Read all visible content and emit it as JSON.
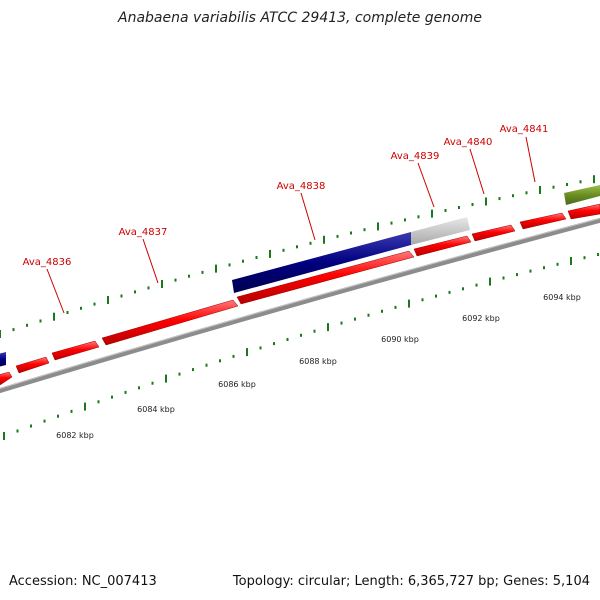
{
  "title": "Anabaena variabilis ATCC 29413, complete genome",
  "footer": {
    "accession": "Accession: NC_007413",
    "summary": "Topology: circular; Length: 6,365,727 bp; Genes: 5,104"
  },
  "colors": {
    "gene_label": "#cc0000",
    "forward_gene": "#ff0000",
    "blue_feature": "#000080",
    "gray_feature": "#c8c8c8",
    "olive_feature": "#6b8e23",
    "tick": "#1a7a1a",
    "backbone": "#8c8c8c"
  },
  "genes": [
    {
      "id": "Ava_4836"
    },
    {
      "id": "Ava_4837"
    },
    {
      "id": "Ava_4838"
    },
    {
      "id": "Ava_4839"
    },
    {
      "id": "Ava_4840"
    },
    {
      "id": "Ava_4841"
    }
  ],
  "scale_labels": [
    {
      "kbp": 6082,
      "text": "6082 kbp"
    },
    {
      "kbp": 6084,
      "text": "6084 kbp"
    },
    {
      "kbp": 6086,
      "text": "6086 kbp"
    },
    {
      "kbp": 6088,
      "text": "6088 kbp"
    },
    {
      "kbp": 6090,
      "text": "6090 kbp"
    },
    {
      "kbp": 6092,
      "text": "6092 kbp"
    },
    {
      "kbp": 6094,
      "text": "6094 kbp"
    }
  ]
}
